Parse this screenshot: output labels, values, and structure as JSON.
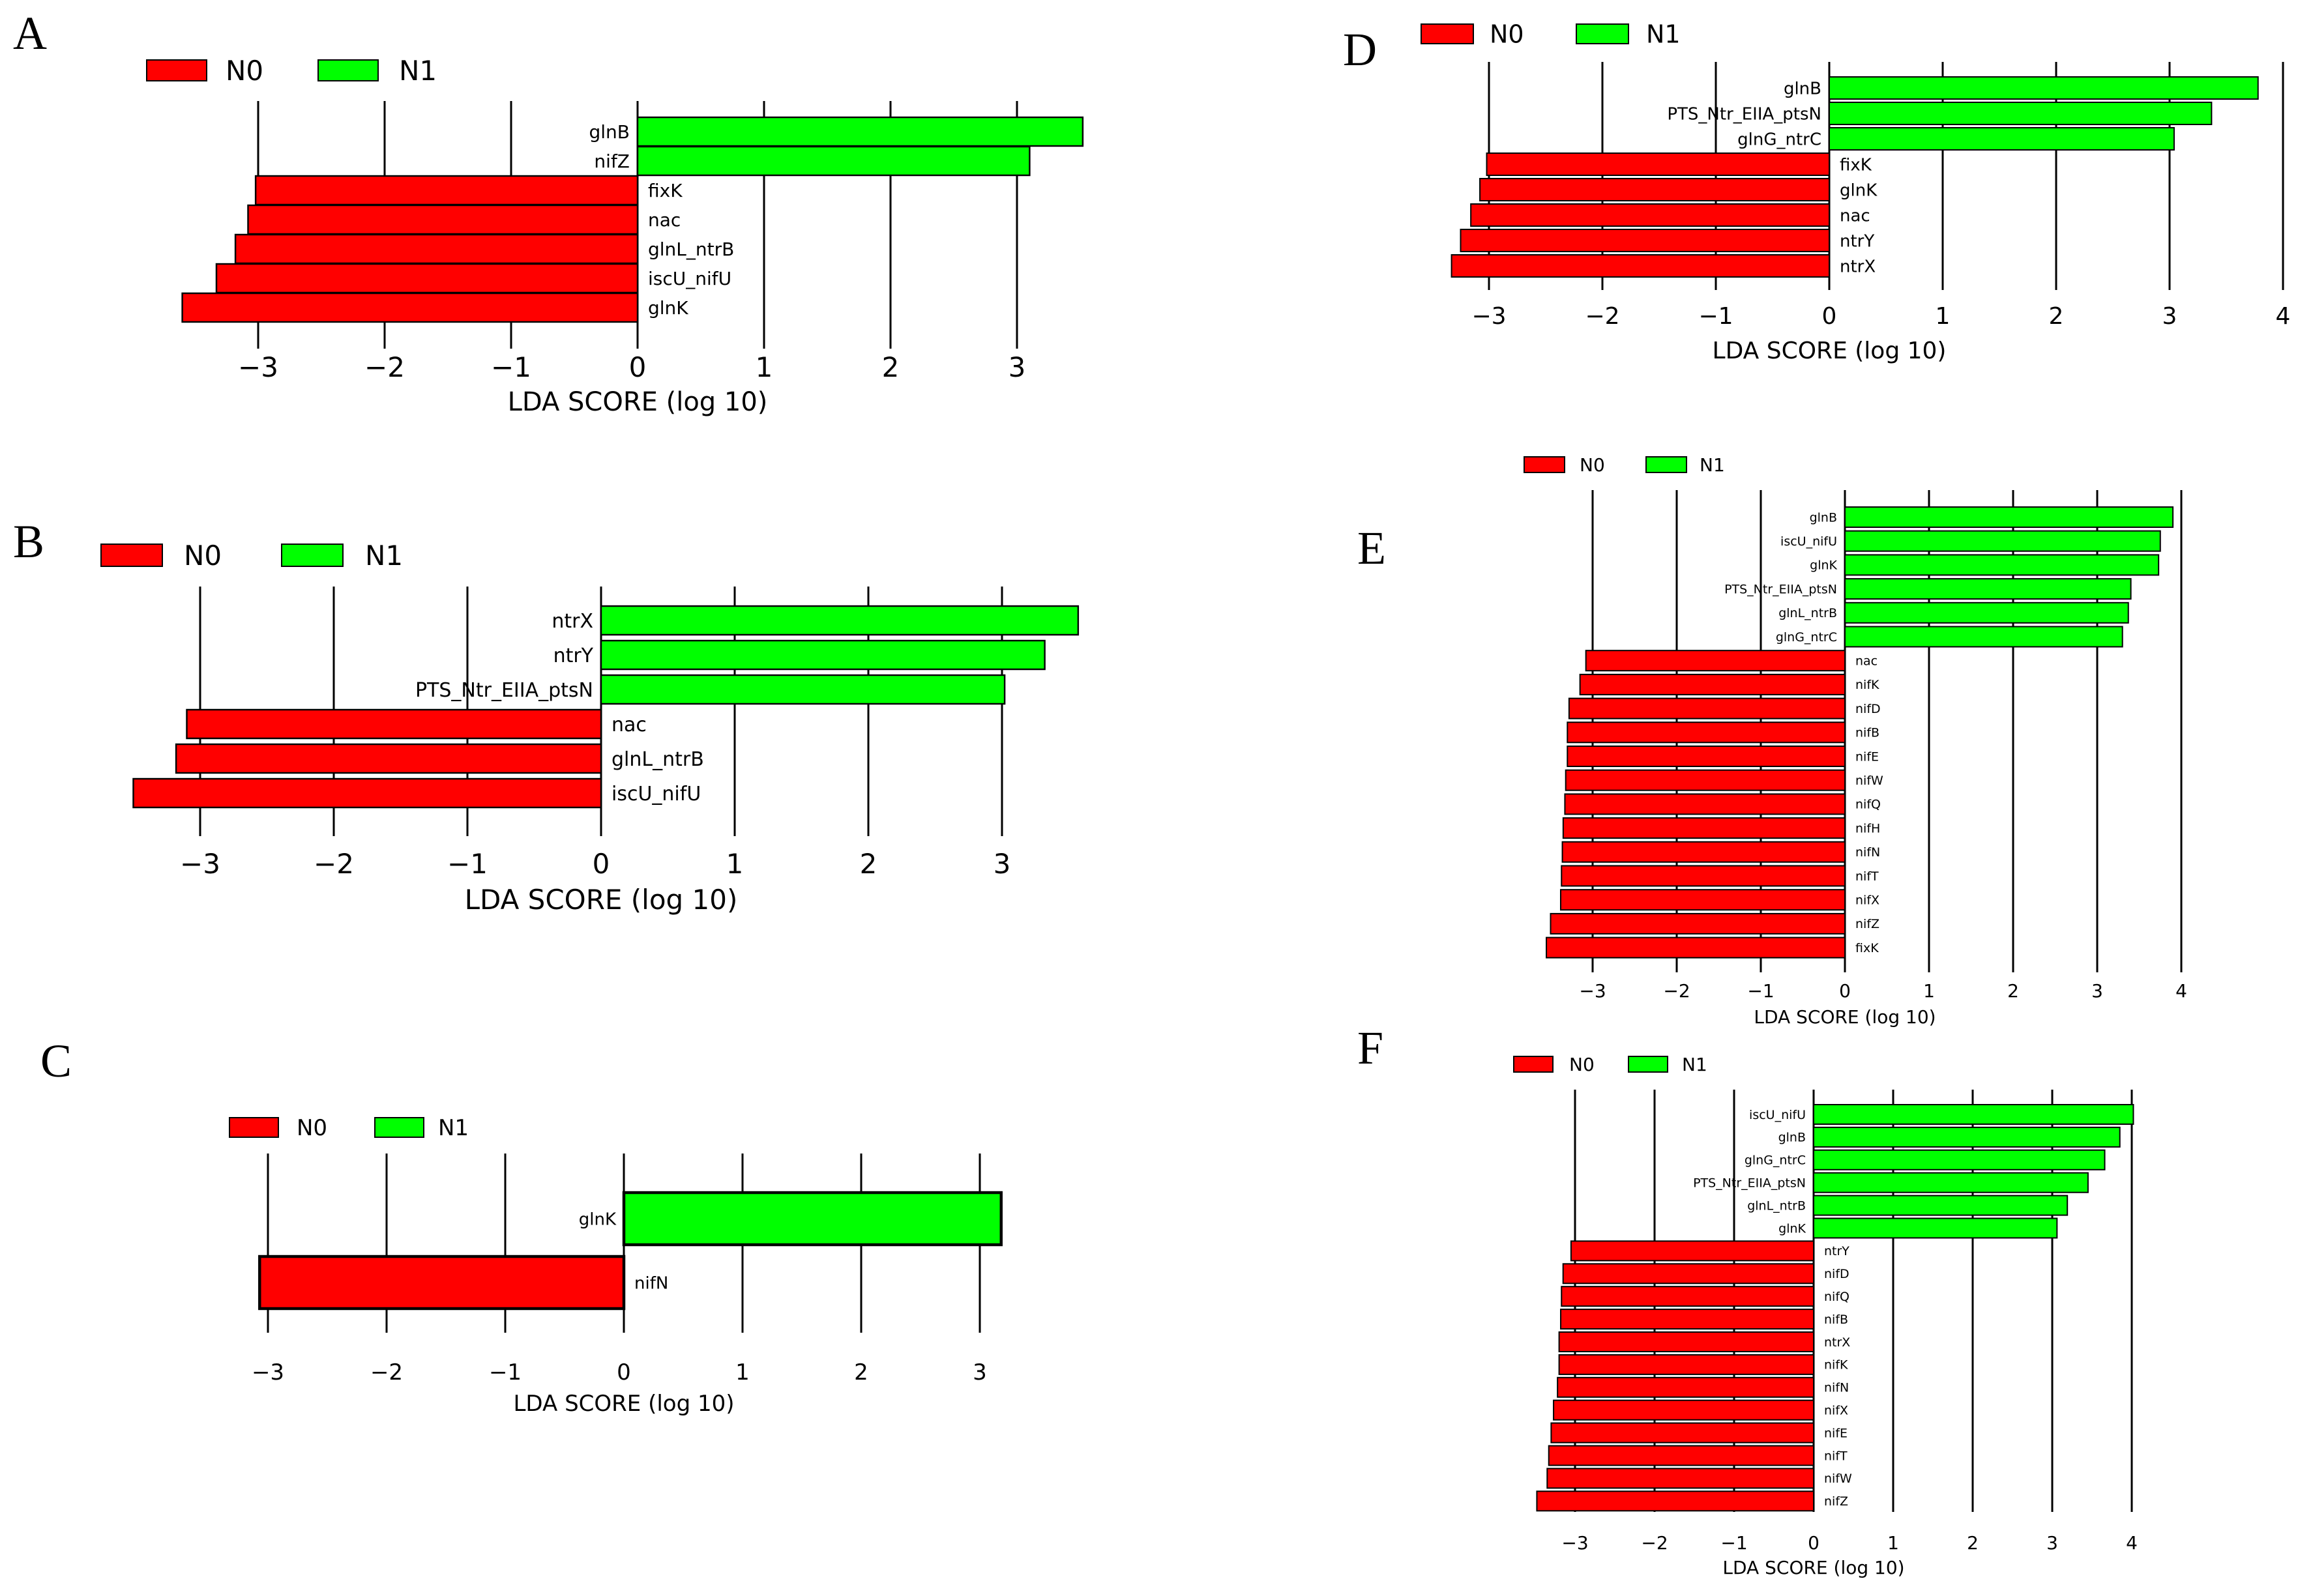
{
  "colors": {
    "n0": "#ff0000",
    "n1": "#00ff00",
    "grid": "#000000",
    "text": "#000000"
  },
  "legend": {
    "n0": "N0",
    "n1": "N1"
  },
  "chart_data": [
    {
      "panel": "A",
      "type": "bar",
      "orientation": "horizontal",
      "xlabel": "LDA SCORE (log 10)",
      "ticks": [
        -3,
        -2,
        -1,
        0,
        1,
        2,
        3
      ],
      "xlim": [
        -3.7,
        3.7
      ],
      "bars": [
        {
          "label": "glnB",
          "value": 3.52,
          "group": "N1"
        },
        {
          "label": "nifZ",
          "value": 3.1,
          "group": "N1"
        },
        {
          "label": "fixK",
          "value": -3.02,
          "group": "N0"
        },
        {
          "label": "nac",
          "value": -3.08,
          "group": "N0"
        },
        {
          "label": "glnL_ntrB",
          "value": -3.18,
          "group": "N0"
        },
        {
          "label": "iscU_nifU",
          "value": -3.33,
          "group": "N0"
        },
        {
          "label": "glnK",
          "value": -3.6,
          "group": "N0"
        }
      ]
    },
    {
      "panel": "B",
      "type": "bar",
      "orientation": "horizontal",
      "xlabel": "LDA SCORE (log 10)",
      "ticks": [
        -3,
        -2,
        -1,
        0,
        1,
        2,
        3
      ],
      "xlim": [
        -3.6,
        3.6
      ],
      "bars": [
        {
          "label": "ntrX",
          "value": 3.57,
          "group": "N1"
        },
        {
          "label": "ntrY",
          "value": 3.32,
          "group": "N1"
        },
        {
          "label": "PTS_Ntr_EIIA_ptsN",
          "value": 3.02,
          "group": "N1"
        },
        {
          "label": "nac",
          "value": -3.1,
          "group": "N0"
        },
        {
          "label": "glnL_ntrB",
          "value": -3.18,
          "group": "N0"
        },
        {
          "label": "iscU_nifU",
          "value": -3.5,
          "group": "N0"
        }
      ]
    },
    {
      "panel": "C",
      "type": "bar",
      "orientation": "horizontal",
      "xlabel": "LDA SCORE (log 10)",
      "ticks": [
        -3,
        -2,
        -1,
        0,
        1,
        2,
        3
      ],
      "xlim": [
        -3.2,
        3.2
      ],
      "bars": [
        {
          "label": "glnK",
          "value": 3.18,
          "group": "N1"
        },
        {
          "label": "nifN",
          "value": -3.07,
          "group": "N0"
        }
      ]
    },
    {
      "panel": "D",
      "type": "bar",
      "orientation": "horizontal",
      "xlabel": "LDA SCORE (log 10)",
      "ticks": [
        -3,
        -2,
        -1,
        0,
        1,
        2,
        3,
        4
      ],
      "xlim": [
        -3.4,
        4.1
      ],
      "bars": [
        {
          "label": "glnB",
          "value": 3.78,
          "group": "N1"
        },
        {
          "label": "PTS_Ntr_EIIA_ptsN",
          "value": 3.37,
          "group": "N1"
        },
        {
          "label": "glnG_ntrC",
          "value": 3.04,
          "group": "N1"
        },
        {
          "label": "fixK",
          "value": -3.02,
          "group": "N0"
        },
        {
          "label": "glnK",
          "value": -3.08,
          "group": "N0"
        },
        {
          "label": "nac",
          "value": -3.16,
          "group": "N0"
        },
        {
          "label": "ntrY",
          "value": -3.25,
          "group": "N0"
        },
        {
          "label": "ntrX",
          "value": -3.33,
          "group": "N0"
        }
      ]
    },
    {
      "panel": "E",
      "type": "bar",
      "orientation": "horizontal",
      "xlabel": "LDA SCORE (log 10)",
      "ticks": [
        -3,
        -2,
        -1,
        0,
        1,
        2,
        3,
        4
      ],
      "xlim": [
        -3.6,
        4.2
      ],
      "bars": [
        {
          "label": "glnB",
          "value": 3.9,
          "group": "N1"
        },
        {
          "label": "iscU_nifU",
          "value": 3.75,
          "group": "N1"
        },
        {
          "label": "glnK",
          "value": 3.73,
          "group": "N1"
        },
        {
          "label": "PTS_Ntr_EIIA_ptsN",
          "value": 3.4,
          "group": "N1"
        },
        {
          "label": "glnL_ntrB",
          "value": 3.37,
          "group": "N1"
        },
        {
          "label": "glnG_ntrC",
          "value": 3.3,
          "group": "N1"
        },
        {
          "label": "nac",
          "value": -3.08,
          "group": "N0"
        },
        {
          "label": "nifK",
          "value": -3.15,
          "group": "N0"
        },
        {
          "label": "nifD",
          "value": -3.28,
          "group": "N0"
        },
        {
          "label": "nifB",
          "value": -3.3,
          "group": "N0"
        },
        {
          "label": "nifE",
          "value": -3.3,
          "group": "N0"
        },
        {
          "label": "nifW",
          "value": -3.32,
          "group": "N0"
        },
        {
          "label": "nifQ",
          "value": -3.33,
          "group": "N0"
        },
        {
          "label": "nifH",
          "value": -3.35,
          "group": "N0"
        },
        {
          "label": "nifN",
          "value": -3.36,
          "group": "N0"
        },
        {
          "label": "nifT",
          "value": -3.37,
          "group": "N0"
        },
        {
          "label": "nifX",
          "value": -3.38,
          "group": "N0"
        },
        {
          "label": "nifZ",
          "value": -3.5,
          "group": "N0"
        },
        {
          "label": "fixK",
          "value": -3.55,
          "group": "N0"
        }
      ]
    },
    {
      "panel": "F",
      "type": "bar",
      "orientation": "horizontal",
      "xlabel": "LDA SCORE (log 10)",
      "ticks": [
        -3,
        -2,
        -1,
        0,
        1,
        2,
        3,
        4
      ],
      "xlim": [
        -3.6,
        4.2
      ],
      "bars": [
        {
          "label": "iscU_nifU",
          "value": 4.02,
          "group": "N1"
        },
        {
          "label": "glnB",
          "value": 3.85,
          "group": "N1"
        },
        {
          "label": "glnG_ntrC",
          "value": 3.66,
          "group": "N1"
        },
        {
          "label": "PTS_Ntr_EIIA_ptsN",
          "value": 3.45,
          "group": "N1"
        },
        {
          "label": "glnL_ntrB",
          "value": 3.19,
          "group": "N1"
        },
        {
          "label": "glnK",
          "value": 3.06,
          "group": "N1"
        },
        {
          "label": "ntrY",
          "value": -3.05,
          "group": "N0"
        },
        {
          "label": "nifD",
          "value": -3.15,
          "group": "N0"
        },
        {
          "label": "nifQ",
          "value": -3.17,
          "group": "N0"
        },
        {
          "label": "nifB",
          "value": -3.18,
          "group": "N0"
        },
        {
          "label": "ntrX",
          "value": -3.2,
          "group": "N0"
        },
        {
          "label": "nifK",
          "value": -3.2,
          "group": "N0"
        },
        {
          "label": "nifN",
          "value": -3.22,
          "group": "N0"
        },
        {
          "label": "nifX",
          "value": -3.27,
          "group": "N0"
        },
        {
          "label": "nifE",
          "value": -3.3,
          "group": "N0"
        },
        {
          "label": "nifT",
          "value": -3.33,
          "group": "N0"
        },
        {
          "label": "nifW",
          "value": -3.35,
          "group": "N0"
        },
        {
          "label": "nifZ",
          "value": -3.48,
          "group": "N0"
        }
      ]
    }
  ]
}
